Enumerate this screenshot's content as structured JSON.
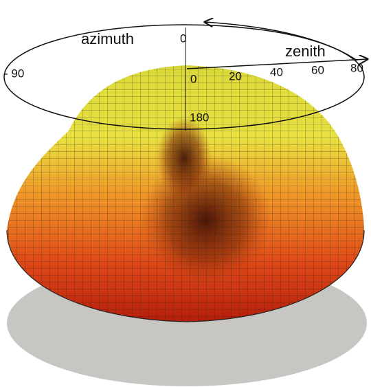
{
  "axes": {
    "azimuth": {
      "label": "azimuth",
      "ticks": [
        "0",
        "- 90",
        "180"
      ]
    },
    "zenith": {
      "label": "zenith",
      "ticks": [
        "0",
        "20",
        "40",
        "60",
        "80"
      ]
    }
  }
}
